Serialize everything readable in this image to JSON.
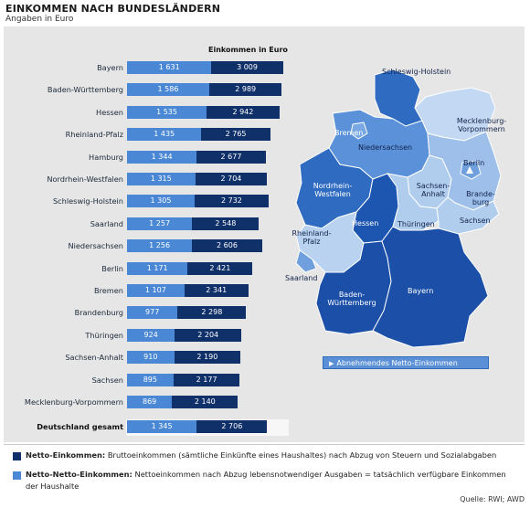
{
  "header": {
    "title": "EINKOMMEN NACH BUNDESLÄNDERN",
    "subtitle": "Angaben in Euro"
  },
  "chart_data": {
    "type": "bar",
    "title": "Einkommen in Euro",
    "categories": [
      "Bayern",
      "Baden-Württemberg",
      "Hessen",
      "Rheinland-Pfalz",
      "Hamburg",
      "Nordrhein-Westfalen",
      "Schleswig-Holstein",
      "Saarland",
      "Niedersachsen",
      "Berlin",
      "Bremen",
      "Brandenburg",
      "Thüringen",
      "Sachsen-Anhalt",
      "Sachsen",
      "Mecklenburg-Vorpommern",
      "Deutschland gesamt"
    ],
    "series": [
      {
        "name": "Netto-Netto-Einkommen",
        "values": [
          1631,
          1586,
          1535,
          1435,
          1344,
          1315,
          1305,
          1257,
          1256,
          1171,
          1107,
          977,
          924,
          910,
          895,
          869,
          1345
        ],
        "labels": [
          "1 631",
          "1 586",
          "1 535",
          "1 435",
          "1 344",
          "1 315",
          "1 305",
          "1 257",
          "1 256",
          "1 171",
          "1 107",
          "977",
          "924",
          "910",
          "895",
          "869",
          "1 345"
        ],
        "color": "#4a88d6"
      },
      {
        "name": "Netto-Einkommen",
        "values": [
          3009,
          2989,
          2942,
          2765,
          2677,
          2704,
          2732,
          2548,
          2606,
          2421,
          2341,
          2298,
          2204,
          2190,
          2177,
          2140,
          2706
        ],
        "labels": [
          "3 009",
          "2 989",
          "2 942",
          "2 765",
          "2 677",
          "2 704",
          "2 732",
          "2 548",
          "2 606",
          "2 421",
          "2 341",
          "2 298",
          "2 204",
          "2 190",
          "2 177",
          "2 140",
          "2 706"
        ],
        "color": "#10306a"
      }
    ],
    "stacking": "overlay (Netto-Netto bar drawn from origin, Netto bar ends at Netto value)",
    "legend_position": "bottom"
  },
  "map": {
    "states": [
      {
        "name": "Schleswig-Holstein",
        "color": "#2f6bc0"
      },
      {
        "name": "Mecklenburg-Vorpommern",
        "color": "#c3d8f2"
      },
      {
        "name": "Bremen",
        "color": "#5a91d9"
      },
      {
        "name": "Niedersachsen",
        "color": "#5a91d9"
      },
      {
        "name": "Berlin",
        "color": "#6f9fdd"
      },
      {
        "name": "Nordrhein-Westfalen",
        "color": "#2f6bc0"
      },
      {
        "name": "Sachsen-Anhalt",
        "color": "#b1cdee"
      },
      {
        "name": "Brande-burg",
        "color": "#9dbfea"
      },
      {
        "name": "Hessen",
        "color": "#1d56b0"
      },
      {
        "name": "Thüringen",
        "color": "#b1cdee"
      },
      {
        "name": "Sachsen",
        "color": "#b1cdee"
      },
      {
        "name": "Rheinland-Pfalz",
        "color": "#b9d2f0"
      },
      {
        "name": "Saarland",
        "color": "#6f9fdd"
      },
      {
        "name": "Baden-Württemberg",
        "color": "#1b4fa8"
      },
      {
        "name": "Bayern",
        "color": "#1b4fa8"
      }
    ],
    "button_label": "Abnehmendes Netto-Einkommen",
    "button_icon": "play-arrow-icon"
  },
  "legend": {
    "items": [
      {
        "key": "Netto-Einkommen:",
        "text": "Bruttoeinkommen (sämtliche Einkünfte eines Haushaltes) nach Abzug von Steuern und Sozialabgaben",
        "color": "#10306a"
      },
      {
        "key": "Netto-Netto-Einkommen:",
        "text": "Nettoeinkommen nach Abzug lebensnotwendiger Ausgaben = tatsächlich verfügbare Einkommen der Haushalte",
        "color": "#4a88d6"
      }
    ]
  },
  "footer": {
    "source": "Quelle: RWI; AWD"
  },
  "colors": {
    "panel": "#e6e6e6",
    "dark_bar": "#10306a",
    "light_bar": "#4a88d6"
  }
}
